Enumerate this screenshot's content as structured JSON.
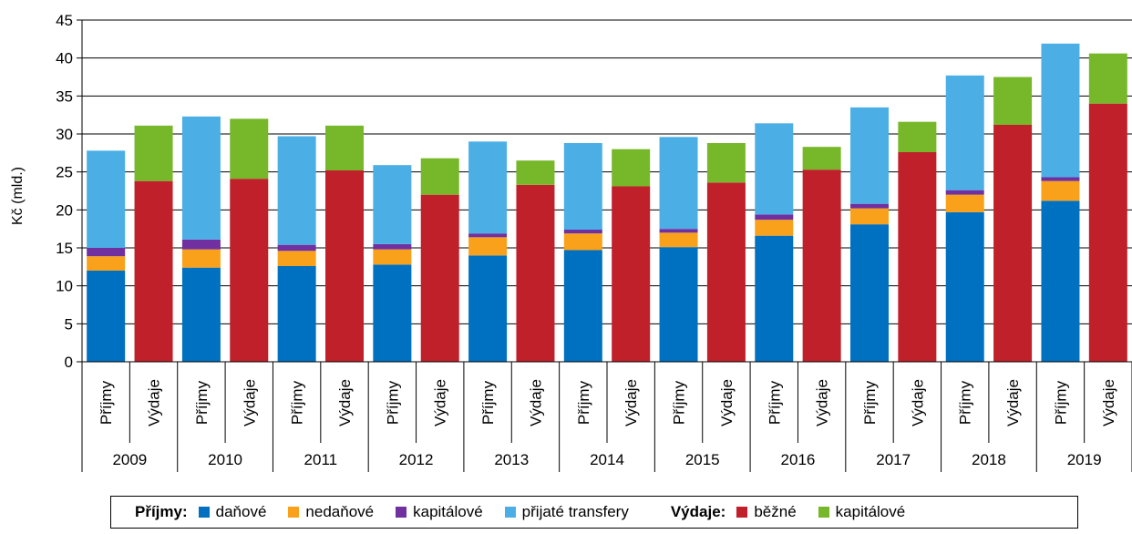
{
  "chart_data": {
    "type": "bar",
    "stacked": true,
    "ylabel": "Kč (mld.)",
    "ylim": [
      0,
      45
    ],
    "yticks": [
      0,
      5,
      10,
      15,
      20,
      25,
      30,
      35,
      40,
      45
    ],
    "grid": "horizontal",
    "years": [
      "2009",
      "2010",
      "2011",
      "2012",
      "2013",
      "2014",
      "2015",
      "2016",
      "2017",
      "2018",
      "2019"
    ],
    "bar_labels": {
      "income": "Příjmy",
      "expense": "Výdaje"
    },
    "income": {
      "group_label": "Příjmy:",
      "series": [
        {
          "name": "daňové",
          "color": "#0070c0",
          "values": [
            12.0,
            12.4,
            12.6,
            12.8,
            14.0,
            14.7,
            15.1,
            16.6,
            18.1,
            19.7,
            21.2
          ]
        },
        {
          "name": "nedaňové",
          "color": "#f9a11b",
          "values": [
            1.9,
            2.4,
            2.0,
            2.0,
            2.4,
            2.2,
            1.9,
            2.1,
            2.1,
            2.3,
            2.6
          ]
        },
        {
          "name": "kapitálové",
          "color": "#7030a0",
          "values": [
            1.1,
            1.3,
            0.8,
            0.7,
            0.5,
            0.5,
            0.5,
            0.7,
            0.6,
            0.6,
            0.5
          ]
        },
        {
          "name": "přijaté transfery",
          "color": "#4bafe6",
          "values": [
            12.8,
            16.2,
            14.3,
            10.4,
            12.1,
            11.4,
            12.1,
            12.0,
            12.7,
            15.1,
            17.6
          ]
        }
      ]
    },
    "expense": {
      "group_label": "Výdaje:",
      "series": [
        {
          "name": "běžné",
          "color": "#c0202a",
          "values": [
            23.8,
            24.1,
            25.2,
            22.0,
            23.3,
            23.1,
            23.6,
            25.3,
            27.6,
            31.2,
            34.0
          ]
        },
        {
          "name": "kapitálové",
          "color": "#77b82a",
          "values": [
            7.3,
            7.9,
            5.9,
            4.8,
            3.2,
            4.9,
            5.2,
            3.0,
            4.0,
            6.3,
            6.6
          ]
        }
      ]
    },
    "legend": {
      "position": "bottom"
    }
  }
}
